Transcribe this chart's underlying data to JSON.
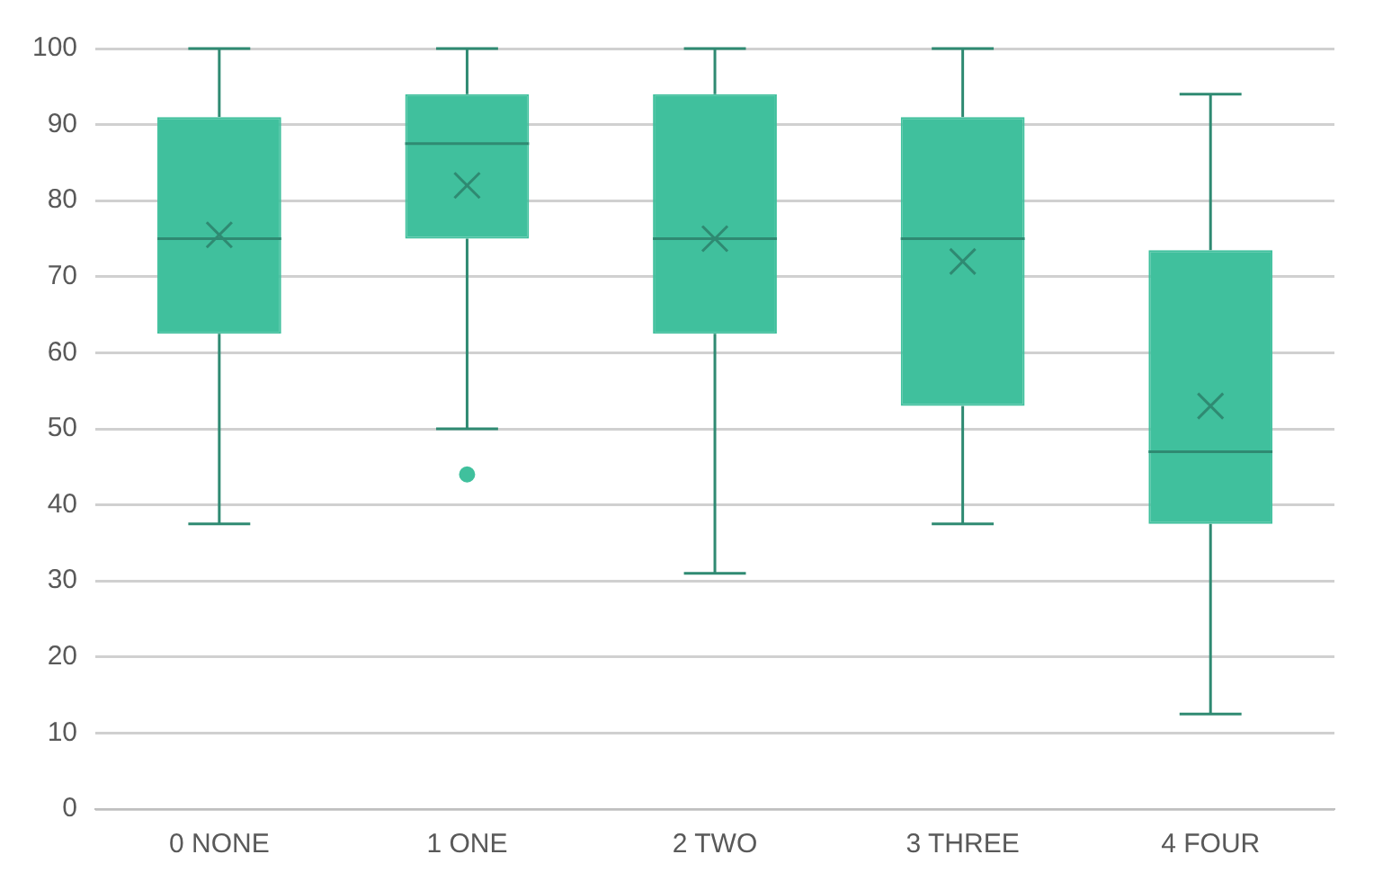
{
  "chart_data": {
    "type": "box",
    "categories": [
      "0 NONE",
      "1 ONE",
      "2 TWO",
      "3 THREE",
      "4 FOUR"
    ],
    "color": "#40c09d",
    "boxes": [
      {
        "low": 37.5,
        "q1": 62.5,
        "median": 75,
        "q3": 91,
        "high": 100,
        "mean": 75.5
      },
      {
        "low": 50,
        "q1": 75,
        "median": 87.5,
        "q3": 94,
        "high": 100,
        "mean": 82,
        "outliers": [
          44
        ]
      },
      {
        "low": 31,
        "q1": 62.5,
        "median": 75,
        "q3": 94,
        "high": 100,
        "mean": 75
      },
      {
        "low": 37.5,
        "q1": 53,
        "median": 75,
        "q3": 91,
        "high": 100,
        "mean": 72
      },
      {
        "low": 12.5,
        "q1": 37.5,
        "median": 47,
        "q3": 73.5,
        "high": 94,
        "mean": 53
      }
    ],
    "ylim": [
      0,
      100
    ],
    "yticks": [
      0,
      10,
      20,
      30,
      40,
      50,
      60,
      70,
      80,
      90,
      100
    ],
    "grid": "y",
    "legend": false
  }
}
